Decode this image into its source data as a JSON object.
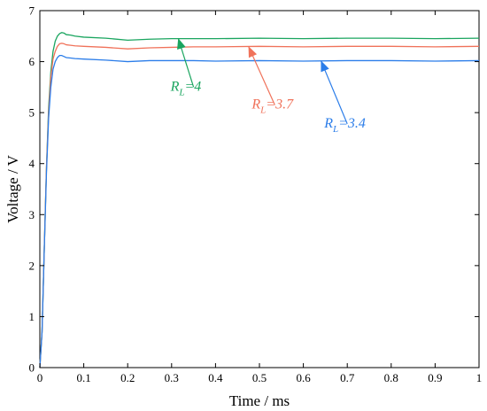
{
  "chart_data": {
    "type": "line",
    "title": "",
    "xlabel": "Time / ms",
    "ylabel": "Voltage / V",
    "xlim": [
      0,
      1
    ],
    "ylim": [
      0,
      7
    ],
    "x_ticks": [
      "0",
      "0.1",
      "0.2",
      "0.3",
      "0.4",
      "0.5",
      "0.6",
      "0.7",
      "0.8",
      "0.9",
      "1"
    ],
    "y_ticks": [
      "0",
      "1",
      "2",
      "3",
      "4",
      "5",
      "6",
      "7"
    ],
    "grid": false,
    "legend": "none",
    "series": [
      {
        "label_main": "R",
        "label_sub": "L",
        "label_value": "=4",
        "color": "#1aa55f",
        "x": [
          0,
          0.005,
          0.01,
          0.015,
          0.02,
          0.025,
          0.03,
          0.035,
          0.04,
          0.045,
          0.05,
          0.055,
          0.06,
          0.07,
          0.08,
          0.1,
          0.15,
          0.2,
          0.25,
          0.3,
          0.35,
          0.4,
          0.5,
          0.6,
          0.7,
          0.8,
          0.9,
          1.0
        ],
        "y": [
          0,
          0.7,
          2.3,
          3.9,
          5.1,
          5.8,
          6.2,
          6.4,
          6.5,
          6.55,
          6.57,
          6.56,
          6.53,
          6.52,
          6.5,
          6.48,
          6.46,
          6.42,
          6.44,
          6.45,
          6.45,
          6.45,
          6.46,
          6.45,
          6.46,
          6.46,
          6.45,
          6.46
        ]
      },
      {
        "label_main": "R",
        "label_sub": "L",
        "label_value": "=3.7",
        "color": "#f0725a",
        "x": [
          0,
          0.005,
          0.01,
          0.015,
          0.02,
          0.025,
          0.03,
          0.035,
          0.04,
          0.045,
          0.05,
          0.055,
          0.06,
          0.07,
          0.08,
          0.1,
          0.15,
          0.2,
          0.25,
          0.3,
          0.35,
          0.4,
          0.5,
          0.6,
          0.7,
          0.8,
          0.9,
          1.0
        ],
        "y": [
          0,
          0.7,
          2.3,
          3.9,
          5.0,
          5.7,
          6.05,
          6.2,
          6.3,
          6.35,
          6.36,
          6.35,
          6.33,
          6.32,
          6.31,
          6.3,
          6.28,
          6.25,
          6.27,
          6.28,
          6.29,
          6.29,
          6.3,
          6.29,
          6.3,
          6.3,
          6.29,
          6.3
        ]
      },
      {
        "label_main": "R",
        "label_sub": "L",
        "label_value": "=3.4",
        "color": "#2b7de9",
        "x": [
          0,
          0.005,
          0.01,
          0.015,
          0.02,
          0.025,
          0.03,
          0.035,
          0.04,
          0.045,
          0.05,
          0.055,
          0.06,
          0.07,
          0.08,
          0.1,
          0.15,
          0.2,
          0.25,
          0.3,
          0.35,
          0.4,
          0.5,
          0.6,
          0.7,
          0.8,
          0.9,
          1.0
        ],
        "y": [
          0,
          0.7,
          2.3,
          3.8,
          4.9,
          5.5,
          5.85,
          6.0,
          6.08,
          6.12,
          6.12,
          6.1,
          6.08,
          6.07,
          6.06,
          6.05,
          6.03,
          6.0,
          6.02,
          6.02,
          6.02,
          6.01,
          6.02,
          6.01,
          6.02,
          6.02,
          6.01,
          6.02
        ]
      }
    ]
  }
}
